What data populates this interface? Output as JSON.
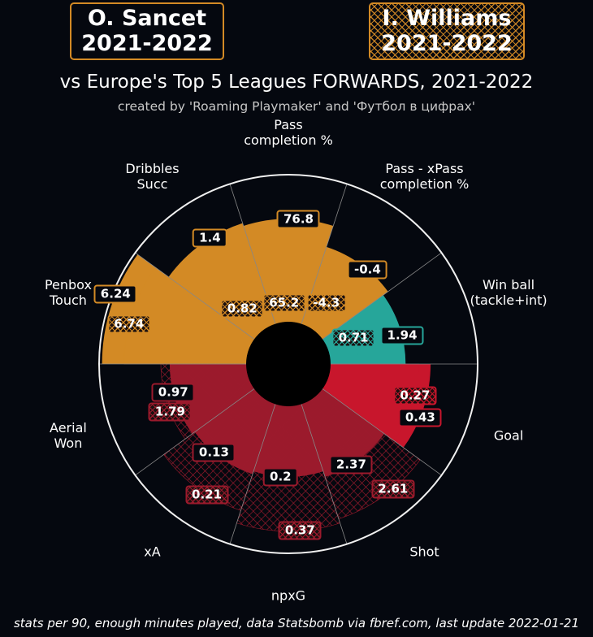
{
  "chart_data": {
    "type": "pizza",
    "title": "vs Europe's Top 5 Leagues FORWARDS, 2021-2022",
    "subtitle": "created by 'Roaming Playmaker' and 'Футбол в цифрах'",
    "footer": "stats per 90, enough minutes played, data Statsbomb via fbref.com, last update 2022-01-21",
    "categories": [
      "Pass\ncompletion %",
      "Pass - xPass\ncompletion %",
      "Win ball\n(tackle+int)",
      "Goal",
      "Shot",
      "npxG",
      "xA",
      "Aerial\nWon",
      "Penbox\nTouch",
      "Dribbles\nSucc"
    ],
    "slice_colors": [
      "#d38a25",
      "#d38a25",
      "#26a69a",
      "#c8162c",
      "#9b1a2c",
      "#9b1a2c",
      "#9b1a2c",
      "#9b1a2c",
      "#d38a25",
      "#d38a25"
    ],
    "rlim": [
      0,
      100
    ],
    "series": [
      {
        "name": "O. Sancet",
        "season": "2021-2022",
        "style": "solid",
        "values": [
          76.8,
          -0.4,
          1.94,
          0.43,
          2.37,
          0.2,
          0.13,
          0.97,
          6.24,
          1.4
        ],
        "percentiles": [
          70,
          55,
          51,
          68,
          52,
          48,
          50,
          52,
          98,
          72
        ]
      },
      {
        "name": "I. Williams",
        "season": "2021-2022",
        "style": "hatched",
        "values": [
          65.2,
          -4.3,
          0.71,
          0.27,
          2.61,
          0.37,
          0.21,
          1.79,
          6.74,
          0.82
        ],
        "percentiles": [
          13,
          20,
          19,
          60,
          82,
          85,
          76,
          58,
          83,
          20
        ]
      }
    ]
  }
}
